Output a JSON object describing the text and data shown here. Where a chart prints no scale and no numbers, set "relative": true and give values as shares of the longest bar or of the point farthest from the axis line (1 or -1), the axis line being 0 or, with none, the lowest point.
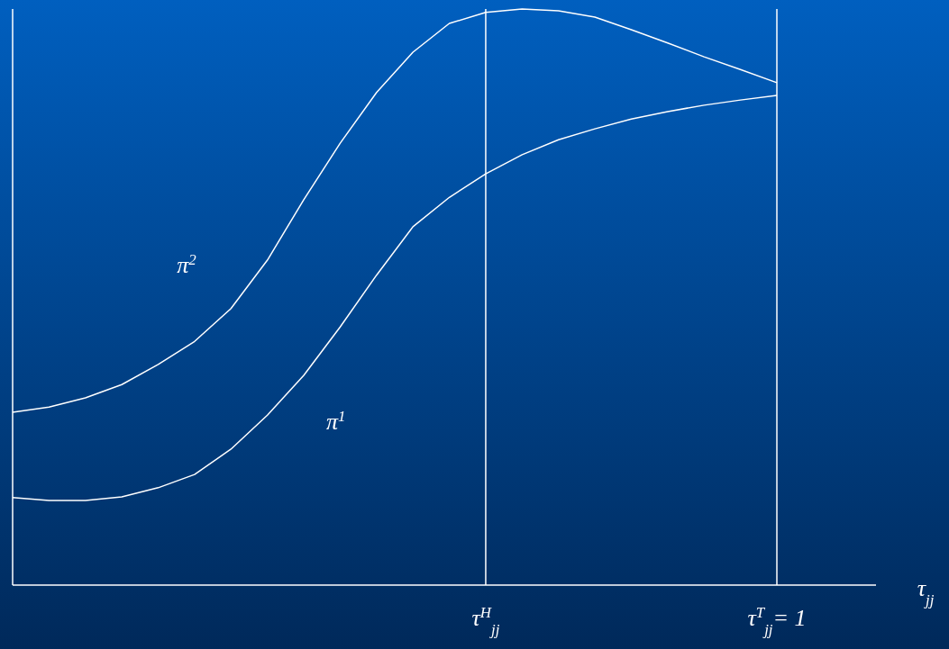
{
  "chart_data": {
    "type": "line",
    "relative": true,
    "xlabel": "τ$_{jj}$",
    "grid": "x",
    "categories": [
      null,
      null,
      null,
      null,
      null,
      null,
      null,
      null,
      null,
      null,
      null,
      null,
      null,
      "τ$^{H}$$_{jj}$",
      null,
      null,
      null,
      null,
      null,
      null,
      null,
      "τ$^{T}$$_{jj}$= 1"
    ],
    "series": [
      {
        "name": "π$^{2}$",
        "color": "#ffffff",
        "values": [
          0.3,
          0.309,
          0.325,
          0.348,
          0.383,
          0.423,
          0.48,
          0.564,
          0.669,
          0.767,
          0.855,
          0.925,
          0.975,
          0.994,
          1.0,
          0.997,
          0.986,
          0.964,
          0.941,
          0.917,
          0.895,
          0.872
        ]
      },
      {
        "name": "π$^{1}$",
        "color": "#ffffff",
        "values": [
          0.152,
          0.147,
          0.147,
          0.153,
          0.169,
          0.192,
          0.236,
          0.295,
          0.364,
          0.448,
          0.538,
          0.622,
          0.673,
          0.714,
          0.747,
          0.773,
          0.792,
          0.809,
          0.822,
          0.833,
          0.842,
          0.85
        ]
      }
    ]
  }
}
